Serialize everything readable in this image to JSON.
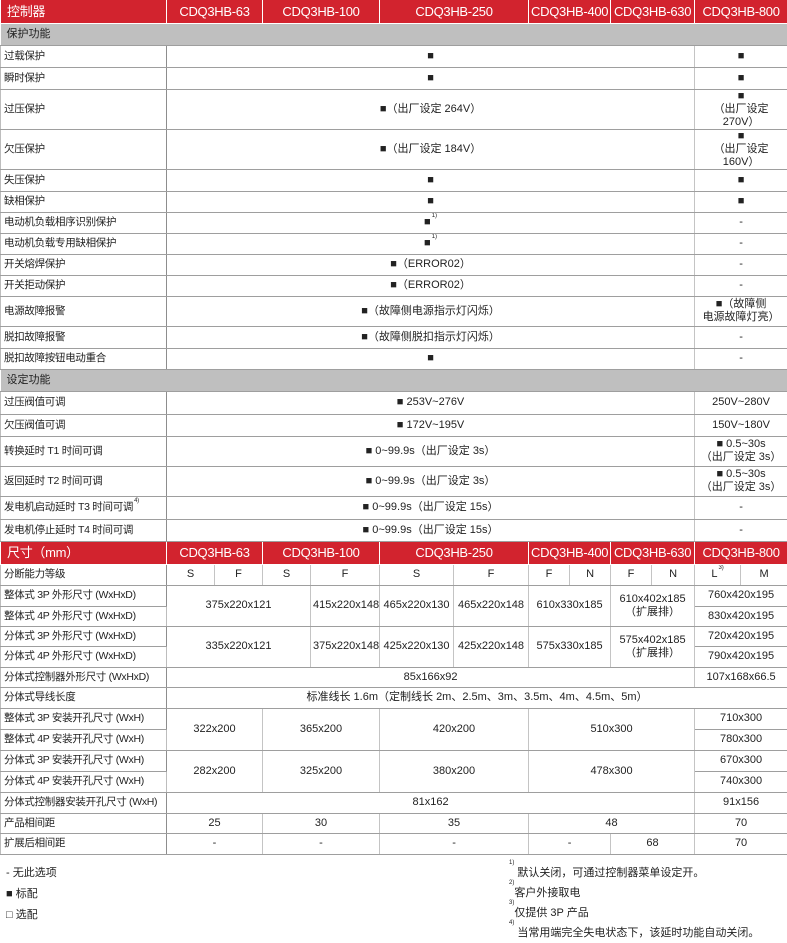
{
  "colors": {
    "header_bg": "#d2232e",
    "section_bg": "#bfbfbf",
    "text": "#222222"
  },
  "table": {
    "rows": [
      {
        "kind": "head",
        "cells": [
          {
            "t": "控制器",
            "lbl": true
          },
          {
            "t": "CDQ3HB-63",
            "c": 2
          },
          {
            "t": "CDQ3HB-100",
            "c": 2
          },
          {
            "t": "CDQ3HB-250",
            "c": 2
          },
          {
            "t": "CDQ3HB-400",
            "c": 2
          },
          {
            "t": "CDQ3HB-630",
            "c": 2
          },
          {
            "t": "CDQ3HB-800",
            "c": 2
          }
        ]
      },
      {
        "kind": "section",
        "cells": [
          {
            "t": "保护功能",
            "c": 13
          }
        ]
      },
      {
        "cells": [
          {
            "t": "过载保护",
            "lbl": true
          },
          {
            "t": "■",
            "c": 10
          },
          {
            "t": "■",
            "c": 2
          }
        ]
      },
      {
        "cells": [
          {
            "t": "瞬时保护",
            "lbl": true
          },
          {
            "t": "■",
            "c": 10
          },
          {
            "t": "■",
            "c": 2
          }
        ]
      },
      {
        "cells": [
          {
            "t": "过压保护",
            "lbl": true
          },
          {
            "t": "■（出厂设定 264V）",
            "c": 10
          },
          {
            "t": "■\n（出厂设定 270V）",
            "c": 2
          }
        ]
      },
      {
        "cells": [
          {
            "t": "欠压保护",
            "lbl": true
          },
          {
            "t": "■（出厂设定 184V）",
            "c": 10
          },
          {
            "t": "■\n（出厂设定 160V）",
            "c": 2
          }
        ]
      },
      {
        "cells": [
          {
            "t": "失压保护",
            "lbl": true
          },
          {
            "t": "■",
            "c": 10
          },
          {
            "t": "■",
            "c": 2
          }
        ]
      },
      {
        "cells": [
          {
            "t": "缺相保护",
            "lbl": true
          },
          {
            "t": "■",
            "c": 10
          },
          {
            "t": "■",
            "c": 2
          }
        ]
      },
      {
        "cells": [
          {
            "t": "电动机负载相序识别保护",
            "lbl": true
          },
          {
            "t": "■",
            "sup": "1)",
            "c": 10
          },
          {
            "t": "-",
            "c": 2
          }
        ]
      },
      {
        "cells": [
          {
            "t": "电动机负载专用缺相保护",
            "lbl": true
          },
          {
            "t": "■",
            "sup": "1)",
            "c": 10
          },
          {
            "t": "-",
            "c": 2
          }
        ]
      },
      {
        "cells": [
          {
            "t": "开关熔焊保护",
            "lbl": true
          },
          {
            "t": "■（ERROR02）",
            "c": 10
          },
          {
            "t": "-",
            "c": 2
          }
        ]
      },
      {
        "cells": [
          {
            "t": "开关拒动保护",
            "lbl": true
          },
          {
            "t": "■（ERROR02）",
            "c": 10
          },
          {
            "t": "-",
            "c": 2
          }
        ]
      },
      {
        "cells": [
          {
            "t": "电源故障报警",
            "lbl": true
          },
          {
            "t": "■（故障侧电源指示灯闪烁）",
            "c": 10
          },
          {
            "t": "■（故障侧\n电源故障灯亮）",
            "c": 2
          }
        ]
      },
      {
        "cells": [
          {
            "t": "脱扣故障报警",
            "lbl": true
          },
          {
            "t": "■（故障侧脱扣指示灯闪烁）",
            "c": 10
          },
          {
            "t": "-",
            "c": 2
          }
        ]
      },
      {
        "cells": [
          {
            "t": "脱扣故障按钮电动重合",
            "lbl": true
          },
          {
            "t": "■",
            "c": 10
          },
          {
            "t": "-",
            "c": 2
          }
        ]
      },
      {
        "kind": "section",
        "cells": [
          {
            "t": "设定功能",
            "c": 13
          }
        ]
      },
      {
        "cells": [
          {
            "t": "过压阀值可调",
            "lbl": true
          },
          {
            "t": "■ 253V~276V",
            "c": 10
          },
          {
            "t": "250V~280V",
            "c": 2
          }
        ]
      },
      {
        "cells": [
          {
            "t": "欠压阀值可调",
            "lbl": true
          },
          {
            "t": "■ 172V~195V",
            "c": 10
          },
          {
            "t": "150V~180V",
            "c": 2
          }
        ]
      },
      {
        "cells": [
          {
            "t": "转换延时 T1 时间可调",
            "lbl": true
          },
          {
            "t": "■ 0~99.9s（出厂设定 3s）",
            "c": 10
          },
          {
            "t": "■ 0.5~30s\n（出厂设定 3s）",
            "c": 2
          }
        ]
      },
      {
        "cells": [
          {
            "t": "返回延时 T2 时间可调",
            "lbl": true
          },
          {
            "t": "■ 0~99.9s（出厂设定 3s）",
            "c": 10
          },
          {
            "t": "■ 0.5~30s\n（出厂设定 3s）",
            "c": 2
          }
        ]
      },
      {
        "cells": [
          {
            "t": "发电机启动延时 T3 时间可调",
            "sup": "4)",
            "lbl": true
          },
          {
            "t": "■ 0~99.9s（出厂设定 15s）",
            "c": 10
          },
          {
            "t": "-",
            "c": 2
          }
        ]
      },
      {
        "cells": [
          {
            "t": "发电机停止延时 T4 时间可调",
            "lbl": true
          },
          {
            "t": "■ 0~99.9s（出厂设定 15s）",
            "c": 10
          },
          {
            "t": "-",
            "c": 2
          }
        ]
      },
      {
        "kind": "head",
        "cells": [
          {
            "t": "尺寸（mm）",
            "lbl": true
          },
          {
            "t": "CDQ3HB-63",
            "c": 2
          },
          {
            "t": "CDQ3HB-100",
            "c": 2
          },
          {
            "t": "CDQ3HB-250",
            "c": 2
          },
          {
            "t": "CDQ3HB-400",
            "c": 2
          },
          {
            "t": "CDQ3HB-630",
            "c": 2
          },
          {
            "t": "CDQ3HB-800",
            "c": 2
          }
        ]
      },
      {
        "cells": [
          {
            "t": "分断能力等级",
            "lbl": true
          },
          {
            "t": "S"
          },
          {
            "t": "F"
          },
          {
            "t": "S"
          },
          {
            "t": "F"
          },
          {
            "t": "S"
          },
          {
            "t": "F"
          },
          {
            "t": "F"
          },
          {
            "t": "N"
          },
          {
            "t": "F"
          },
          {
            "t": "N"
          },
          {
            "t": "L",
            "sup": "3)"
          },
          {
            "t": "M"
          }
        ]
      },
      {
        "cells": [
          {
            "t": "整体式 3P 外形尺寸 (WxHxD)",
            "lbl": true
          },
          {
            "t": "375x220x121",
            "c": 3,
            "r": 2
          },
          {
            "t": "415x220x148",
            "r": 2
          },
          {
            "t": "465x220x130",
            "r": 2
          },
          {
            "t": "465x220x148",
            "r": 2
          },
          {
            "t": "610x330x185",
            "c": 2,
            "r": 2
          },
          {
            "t": "610x402x185\n（扩展排）",
            "c": 2,
            "r": 2
          },
          {
            "t": "760x420x195",
            "c": 2
          }
        ]
      },
      {
        "cells": [
          {
            "t": "整体式 4P 外形尺寸 (WxHxD)",
            "lbl": true
          },
          {
            "t": "830x420x195",
            "c": 2
          }
        ]
      },
      {
        "cells": [
          {
            "t": "分体式 3P 外形尺寸 (WxHxD)",
            "lbl": true
          },
          {
            "t": "335x220x121",
            "c": 3,
            "r": 2
          },
          {
            "t": "375x220x148",
            "r": 2
          },
          {
            "t": "425x220x130",
            "r": 2
          },
          {
            "t": "425x220x148",
            "r": 2
          },
          {
            "t": "575x330x185",
            "c": 2,
            "r": 2
          },
          {
            "t": "575x402x185\n（扩展排）",
            "c": 2,
            "r": 2
          },
          {
            "t": "720x420x195",
            "c": 2
          }
        ]
      },
      {
        "cells": [
          {
            "t": "分体式 4P 外形尺寸 (WxHxD)",
            "lbl": true
          },
          {
            "t": "790x420x195",
            "c": 2
          }
        ]
      },
      {
        "cells": [
          {
            "t": "分体式控制器外形尺寸 (WxHxD)",
            "lbl": true
          },
          {
            "t": "85x166x92",
            "c": 10
          },
          {
            "t": "107x168x66.5",
            "c": 2
          }
        ]
      },
      {
        "cells": [
          {
            "t": "分体式导线长度",
            "lbl": true
          },
          {
            "t": "标准线长 1.6m（定制线长 2m、2.5m、3m、3.5m、4m、4.5m、5m）",
            "c": 12
          }
        ]
      },
      {
        "cells": [
          {
            "t": "整体式 3P 安装开孔尺寸 (WxH)",
            "lbl": true
          },
          {
            "t": "322x200",
            "c": 2,
            "r": 2
          },
          {
            "t": "365x200",
            "c": 2,
            "r": 2
          },
          {
            "t": "420x200",
            "c": 2,
            "r": 2
          },
          {
            "t": "510x300",
            "c": 4,
            "r": 2
          },
          {
            "t": "710x300",
            "c": 2
          }
        ]
      },
      {
        "cells": [
          {
            "t": "整体式 4P 安装开孔尺寸 (WxH)",
            "lbl": true
          },
          {
            "t": "780x300",
            "c": 2
          }
        ]
      },
      {
        "cells": [
          {
            "t": "分体式 3P 安装开孔尺寸 (WxH)",
            "lbl": true
          },
          {
            "t": "282x200",
            "c": 2,
            "r": 2
          },
          {
            "t": "325x200",
            "c": 2,
            "r": 2
          },
          {
            "t": "380x200",
            "c": 2,
            "r": 2
          },
          {
            "t": "478x300",
            "c": 4,
            "r": 2
          },
          {
            "t": "670x300",
            "c": 2
          }
        ]
      },
      {
        "cells": [
          {
            "t": "分体式 4P 安装开孔尺寸 (WxH)",
            "lbl": true
          },
          {
            "t": "740x300",
            "c": 2
          }
        ]
      },
      {
        "cells": [
          {
            "t": "分体式控制器安装开孔尺寸 (WxH)",
            "lbl": true
          },
          {
            "t": "81x162",
            "c": 10
          },
          {
            "t": "91x156",
            "c": 2
          }
        ]
      },
      {
        "cells": [
          {
            "t": "产品相间距",
            "lbl": true
          },
          {
            "t": "25",
            "c": 2
          },
          {
            "t": "30",
            "c": 2
          },
          {
            "t": "35",
            "c": 2
          },
          {
            "t": "48",
            "c": 4
          },
          {
            "t": "70",
            "c": 2
          }
        ]
      },
      {
        "cells": [
          {
            "t": "扩展后相间距",
            "lbl": true
          },
          {
            "t": "-",
            "c": 2
          },
          {
            "t": "-",
            "c": 2
          },
          {
            "t": "-",
            "c": 2
          },
          {
            "t": "-",
            "c": 2
          },
          {
            "t": "68",
            "c": 2
          },
          {
            "t": "70",
            "c": 2
          }
        ]
      }
    ]
  },
  "legend": [
    {
      "t": "- 无此选项"
    },
    {
      "t": "■ 标配"
    },
    {
      "t": "□ 选配"
    }
  ],
  "notes": [
    {
      "sup": "1)",
      "t": " 默认关闭，可通过控制器菜单设定开。"
    },
    {
      "sup": "2)",
      "t": "客户外接取电"
    },
    {
      "sup": "3)",
      "t": "仅提供 3P 产品"
    },
    {
      "sup": "4)",
      "t": " 当常用端完全失电状态下，该延时功能自动关闭。"
    }
  ]
}
